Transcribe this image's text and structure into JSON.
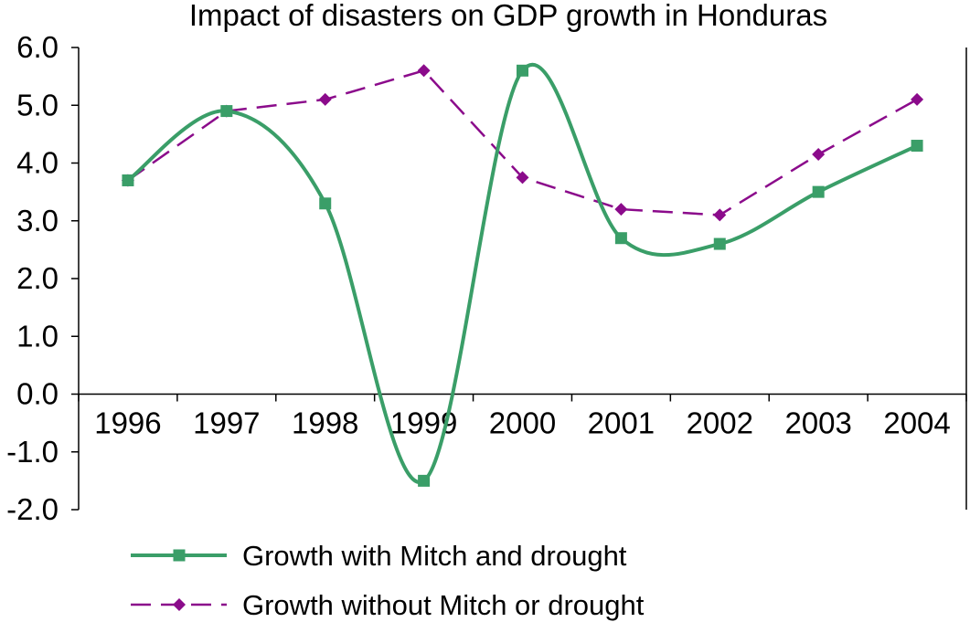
{
  "chart_data": {
    "type": "line",
    "title": "Impact of disasters on GDP growth in Honduras",
    "xlabel": "",
    "ylabel": "",
    "categories": [
      "1996",
      "1997",
      "1998",
      "1999",
      "2000",
      "2001",
      "2002",
      "2003",
      "2004"
    ],
    "ylim": [
      -2.0,
      6.0
    ],
    "yticks": [
      "6.0",
      "5.0",
      "4.0",
      "3.0",
      "2.0",
      "1.0",
      "0.0",
      "-1.0",
      "-2.0"
    ],
    "grid": false,
    "legend_position": "bottom",
    "series": [
      {
        "name": "Growth with Mitch and drought",
        "values": [
          3.7,
          4.9,
          3.3,
          -1.5,
          5.6,
          2.7,
          2.6,
          3.5,
          4.3
        ],
        "color": "#3a9e68",
        "marker": "square",
        "style": "solid-smooth"
      },
      {
        "name": "Growth without Mitch or drought",
        "values": [
          3.7,
          4.9,
          5.1,
          5.6,
          3.75,
          3.2,
          3.1,
          4.15,
          5.1
        ],
        "color": "#8b0b8b",
        "marker": "diamond",
        "style": "dashed"
      }
    ]
  }
}
